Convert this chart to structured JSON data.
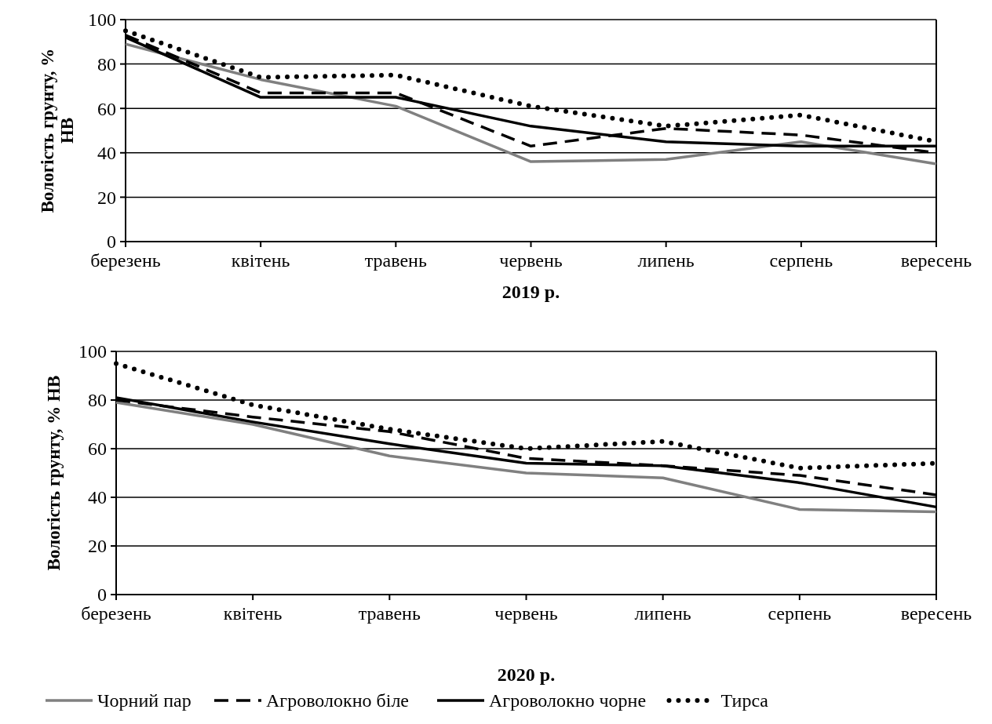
{
  "chart_data": [
    {
      "type": "line",
      "xlabel": "2019 р.",
      "ylabel": "Вологість грунту, % НВ",
      "categories": [
        "березень",
        "квітень",
        "травень",
        "червень",
        "липень",
        "серпень",
        "вересень"
      ],
      "ylim": [
        0,
        100
      ],
      "yticks": [
        0,
        20,
        40,
        60,
        80,
        100
      ],
      "grid": "y",
      "legend": false,
      "series": [
        {
          "color": "#808080",
          "line_style": "solid",
          "values": [
            89,
            73,
            61,
            36,
            37,
            45,
            35
          ]
        },
        {
          "color": "#000000",
          "line_style": "dashed",
          "values": [
            93,
            67,
            67,
            43,
            51,
            48,
            40
          ]
        },
        {
          "color": "#000000",
          "line_style": "solid",
          "values": [
            92,
            65,
            65,
            52,
            45,
            43,
            43
          ]
        },
        {
          "color": "#000000",
          "line_style": "dotted",
          "values": [
            95,
            74,
            75,
            61,
            52,
            57,
            45
          ]
        }
      ]
    },
    {
      "type": "line",
      "xlabel": "2020 р.",
      "ylabel": "Вологість грунту, % НВ",
      "categories": [
        "березень",
        "квітень",
        "травень",
        "червень",
        "липень",
        "серпень",
        "вересень"
      ],
      "ylim": [
        0,
        100
      ],
      "yticks": [
        0,
        20,
        40,
        60,
        80,
        100
      ],
      "grid": "y",
      "legend": "bottom",
      "series": [
        {
          "name": "Чорний пар",
          "color": "#808080",
          "line_style": "solid",
          "values": [
            79,
            70,
            57,
            50,
            48,
            35,
            34
          ]
        },
        {
          "name": "Агроволокно біле",
          "color": "#000000",
          "line_style": "dashed",
          "values": [
            80,
            73,
            67,
            56,
            53,
            49,
            41
          ]
        },
        {
          "name": "Агроволокно чорне",
          "color": "#000000",
          "line_style": "solid",
          "values": [
            81,
            71,
            62,
            54,
            53,
            46,
            36
          ]
        },
        {
          "name": "Тирса",
          "color": "#000000",
          "line_style": "dotted",
          "values": [
            95,
            78,
            68,
            60,
            63,
            52,
            54
          ]
        }
      ]
    }
  ]
}
